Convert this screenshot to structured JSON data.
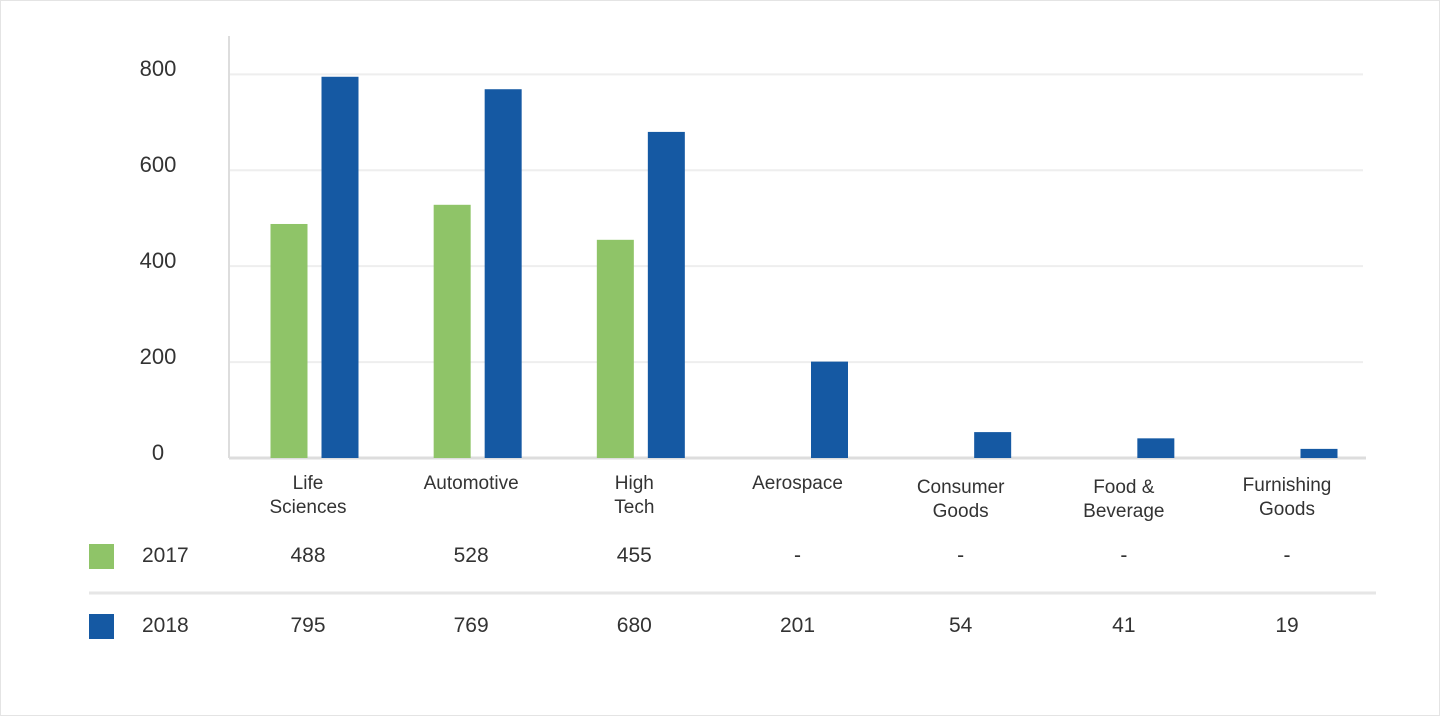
{
  "chart_data": {
    "type": "bar",
    "categories": [
      "Life\nSciences",
      "Automotive",
      "High\nTech",
      "Aerospace",
      "Consumer\nGoods",
      "Food &\nBeverage",
      "Furnishing\nGoods"
    ],
    "series": [
      {
        "name": "2017",
        "color": "#8fc468",
        "values": [
          488,
          528,
          455,
          null,
          null,
          null,
          null
        ],
        "value_labels": [
          "488",
          "528",
          "455",
          "-",
          "-",
          "-",
          "-"
        ]
      },
      {
        "name": "2018",
        "color": "#1559a3",
        "values": [
          795,
          769,
          680,
          201,
          54,
          41,
          19
        ]
      }
    ],
    "ylim": [
      0,
      880
    ],
    "yticks": [
      0,
      200,
      400,
      600,
      800
    ],
    "grid": true
  }
}
